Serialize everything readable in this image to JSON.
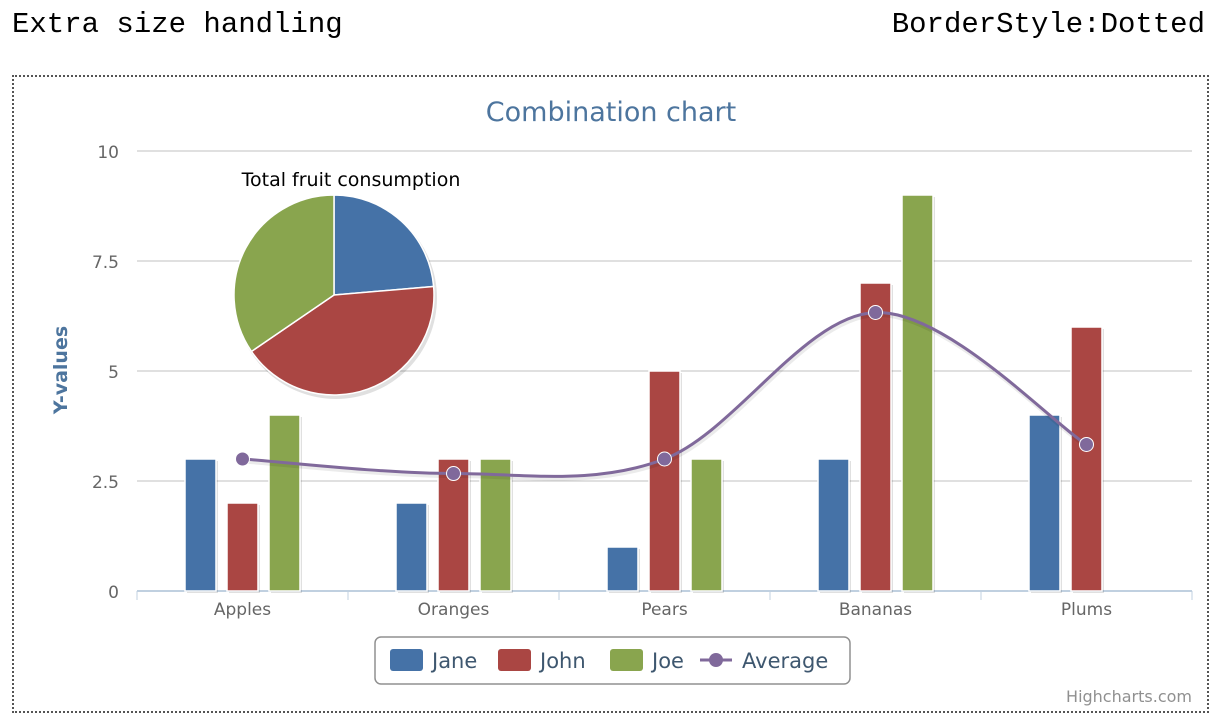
{
  "header": {
    "left_label": "Extra size handling",
    "right_label": "BorderStyle:Dotted"
  },
  "credit": "Highcharts.com",
  "chart_data": [
    {
      "type": "bar",
      "title": "Combination chart",
      "ylabel": "Y-values",
      "xlabel": "",
      "ylim": [
        0,
        10
      ],
      "yticks": [
        0,
        2.5,
        5,
        7.5,
        10
      ],
      "ytick_labels": [
        "0",
        "2.5",
        "5",
        "7.5",
        "10"
      ],
      "grid": true,
      "legend": "bottom-center",
      "categories": [
        "Apples",
        "Oranges",
        "Pears",
        "Bananas",
        "Plums"
      ],
      "series": [
        {
          "name": "Jane",
          "type": "bar",
          "color": "#4572A7",
          "values": [
            3,
            2,
            1,
            3,
            4
          ]
        },
        {
          "name": "John",
          "type": "bar",
          "color": "#AA4643",
          "values": [
            2,
            3,
            5,
            7,
            6
          ]
        },
        {
          "name": "Joe",
          "type": "bar",
          "color": "#89A54E",
          "values": [
            4,
            3,
            3,
            9,
            0
          ]
        },
        {
          "name": "Average",
          "type": "line",
          "color": "#80699B",
          "values": [
            3,
            2.67,
            3,
            6.33,
            3.33
          ]
        }
      ]
    },
    {
      "type": "pie",
      "title": "Total fruit consumption",
      "labels": [
        "Jane",
        "John",
        "Joe"
      ],
      "values": [
        13,
        23,
        19
      ],
      "colors": [
        "#4572A7",
        "#AA4643",
        "#89A54E"
      ]
    }
  ]
}
